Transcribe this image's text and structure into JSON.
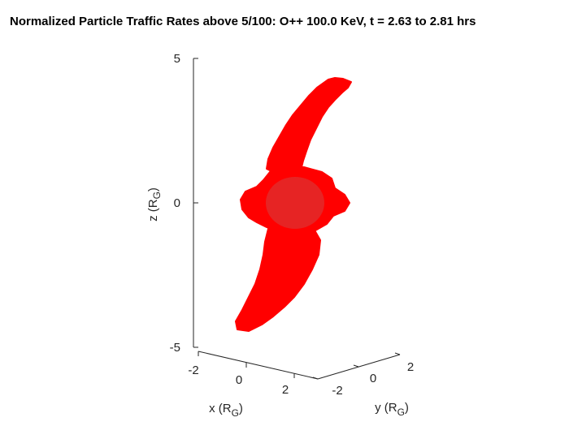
{
  "chart_data": {
    "type": "3d-surface",
    "title": "Normalized Particle Traffic Rates above 5/100: O++ 100.0 KeV, t = 2.63 to 2.81 hrs",
    "xlabel": {
      "main": "x (R",
      "sub": "G",
      "end": ")"
    },
    "ylabel": {
      "main": "y (R",
      "sub": "G",
      "end": ")"
    },
    "zlabel": {
      "main": "z (R",
      "sub": "G",
      "end": ")"
    },
    "x_ticks": [
      "-2",
      "0",
      "2"
    ],
    "y_ticks": [
      "-2",
      "0",
      "2"
    ],
    "z_ticks": [
      "5",
      "0",
      "-5"
    ],
    "xlim": [
      -2,
      3
    ],
    "ylim": [
      -2.5,
      2.5
    ],
    "zlim": [
      -5,
      5
    ],
    "surface_color": "#ff0000",
    "core_color": "#e22a2a",
    "grid": false
  }
}
